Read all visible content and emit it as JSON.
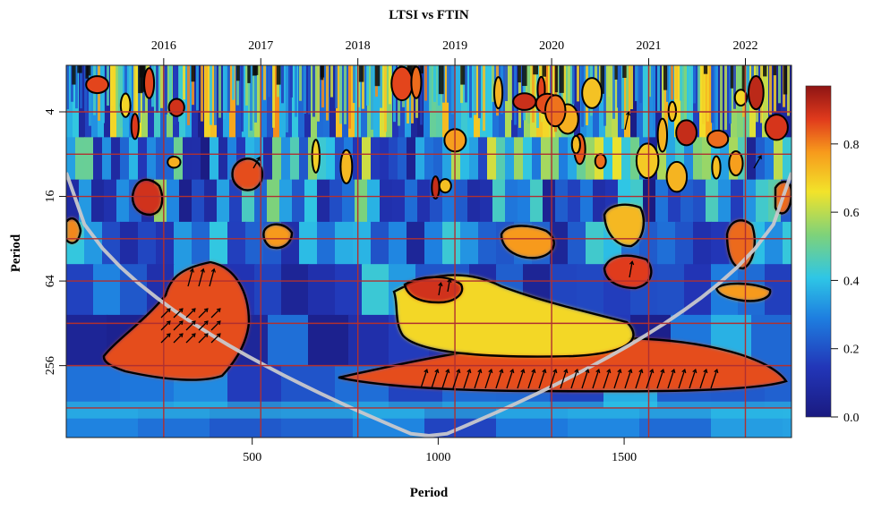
{
  "chart_data": {
    "type": "heatmap",
    "title": "LTSI vs FTIN",
    "xlabel": "Period",
    "ylabel": "Period",
    "x_ticks": [
      {
        "value": 500,
        "label": "500"
      },
      {
        "value": 1000,
        "label": "1000"
      },
      {
        "value": 1500,
        "label": "1500"
      }
    ],
    "x_range": [
      0,
      1950
    ],
    "top_ticks": [
      {
        "value": 262,
        "label": "2016"
      },
      {
        "value": 523,
        "label": "2017"
      },
      {
        "value": 784,
        "label": "2018"
      },
      {
        "value": 1045,
        "label": "2019"
      },
      {
        "value": 1305,
        "label": "2020"
      },
      {
        "value": 1566,
        "label": "2021"
      },
      {
        "value": 1826,
        "label": "2022"
      }
    ],
    "y_ticks": [
      {
        "value": 4,
        "label": "4"
      },
      {
        "value": 16,
        "label": "16"
      },
      {
        "value": 64,
        "label": "64"
      },
      {
        "value": 256,
        "label": "256"
      }
    ],
    "y_scale": "log2",
    "y_range_log2": [
      0.9,
      9.7
    ],
    "grid_h_log2": [
      2,
      3,
      4,
      5,
      6,
      7,
      8,
      9
    ],
    "grid_v": [
      262,
      523,
      784,
      1045,
      1305,
      1566,
      1826
    ],
    "colorbar": {
      "ticks": [
        {
          "value": 0.0,
          "label": "0.0"
        },
        {
          "value": 0.2,
          "label": "0.2"
        },
        {
          "value": 0.4,
          "label": "0.4"
        },
        {
          "value": 0.6,
          "label": "0.6"
        },
        {
          "value": 0.8,
          "label": "0.8"
        }
      ],
      "range": [
        0,
        0.97
      ]
    },
    "coherence_regions": [
      {
        "x": 330,
        "period": 120,
        "level": 0.9
      },
      {
        "x": 250,
        "period": 170,
        "level": 0.88
      },
      {
        "x": 440,
        "period": 90,
        "level": 0.85
      },
      {
        "x": 1000,
        "period": 190,
        "level": 0.8
      },
      {
        "x": 1150,
        "period": 240,
        "level": 0.92
      },
      {
        "x": 1450,
        "period": 250,
        "level": 0.93
      },
      {
        "x": 1750,
        "period": 250,
        "level": 0.9
      },
      {
        "x": 1000,
        "period": 60,
        "level": 0.8
      },
      {
        "x": 930,
        "period": 64,
        "level": 0.86
      },
      {
        "x": 200,
        "period": 16,
        "level": 0.85
      },
      {
        "x": 470,
        "period": 12,
        "level": 0.8
      },
      {
        "x": 1300,
        "period": 35,
        "level": 0.78
      },
      {
        "x": 1520,
        "period": 30,
        "level": 0.82
      },
      {
        "x": 1500,
        "period": 55,
        "level": 0.85
      },
      {
        "x": 1820,
        "period": 40,
        "level": 0.82
      },
      {
        "x": 1830,
        "period": 65,
        "level": 0.75
      },
      {
        "x": 15,
        "period": 32,
        "level": 0.78
      },
      {
        "x": 560,
        "period": 35,
        "level": 0.7
      },
      {
        "x": 1920,
        "period": 16,
        "level": 0.85
      }
    ],
    "cone_of_influence": "light grey U-shaped curve spanning full width, minimum near x=960"
  }
}
